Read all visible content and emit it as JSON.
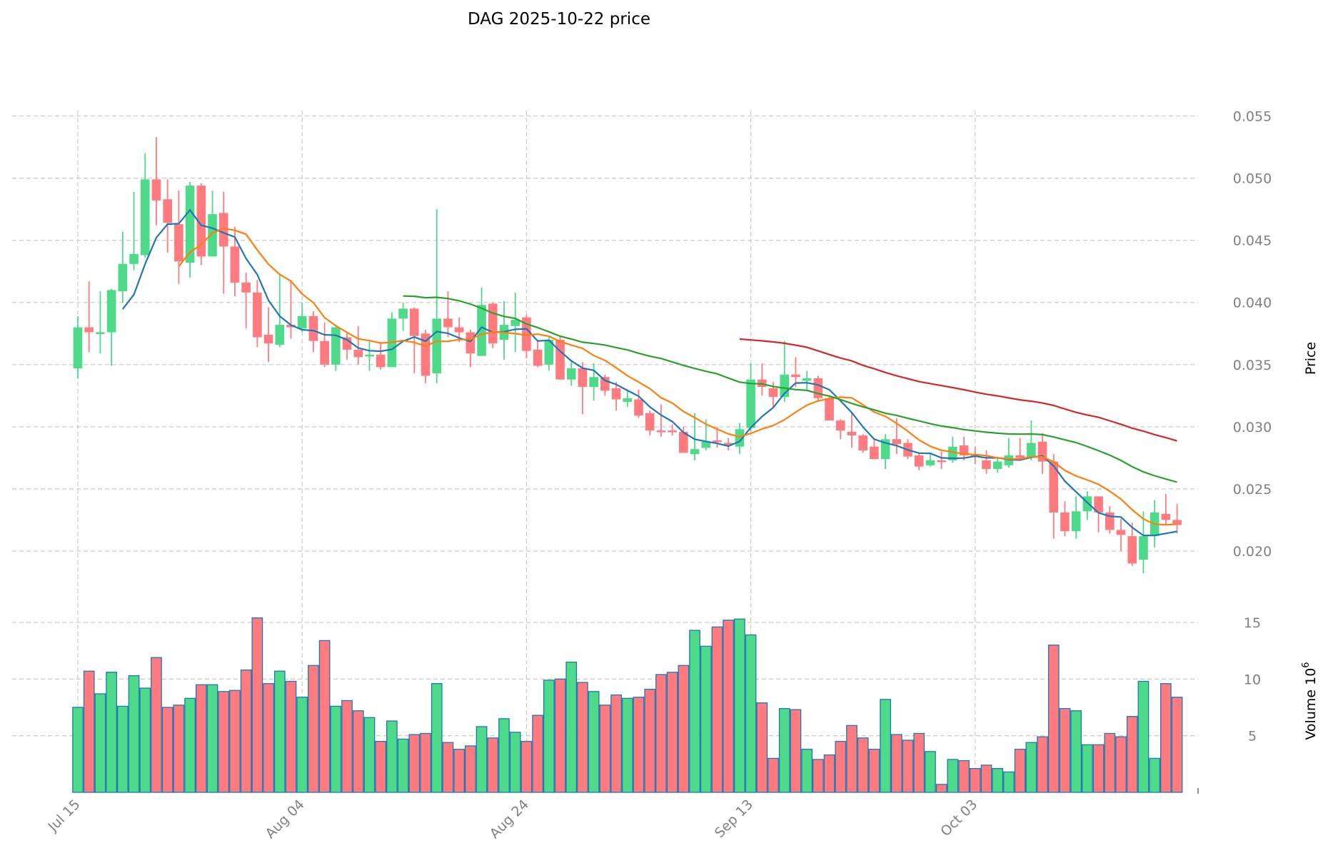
{
  "chart_data": {
    "type": "candlestick",
    "title": "DAG  2025-10-22  price",
    "ylabel_price": "Price",
    "ylabel_volume": "Volume",
    "volume_exponent_label": "10",
    "volume_exponent_power": "6",
    "price_ylim": [
      0.0175,
      0.055
    ],
    "price_ticks": [
      "0.020",
      "0.025",
      "0.030",
      "0.035",
      "0.040",
      "0.045",
      "0.050",
      "0.055"
    ],
    "volume_ylim": [
      0,
      16
    ],
    "volume_ticks": [
      "5",
      "10",
      "15"
    ],
    "x_tick_labels": [
      "Jul 15",
      "Aug 04",
      "Aug 24",
      "Sep 13",
      "Oct 03"
    ],
    "x_tick_indices": [
      0,
      20,
      40,
      60,
      80
    ],
    "start_date": "Jul 15",
    "grid": true,
    "colors": {
      "up": "#4ddb8a",
      "down": "#ff7b80",
      "volume_edge": "#1f77b4",
      "ma_a": "#1f77b4",
      "ma_b": "#ff7f0e",
      "ma_c": "#2ca02c",
      "ma_d": "#d62728"
    },
    "moving_average_periods": [
      5,
      10,
      30,
      60
    ],
    "ohlc": [
      [
        0.0347,
        0.0389,
        0.0339,
        0.038
      ],
      [
        0.038,
        0.0417,
        0.036,
        0.0376
      ],
      [
        0.0375,
        0.0409,
        0.0359,
        0.0376
      ],
      [
        0.0376,
        0.0411,
        0.0349,
        0.041
      ],
      [
        0.0409,
        0.0457,
        0.04,
        0.0431
      ],
      [
        0.0431,
        0.0489,
        0.0426,
        0.0439
      ],
      [
        0.0438,
        0.052,
        0.0436,
        0.0499
      ],
      [
        0.0499,
        0.0533,
        0.0462,
        0.0482
      ],
      [
        0.0483,
        0.0499,
        0.044,
        0.0464
      ],
      [
        0.0463,
        0.049,
        0.0415,
        0.0433
      ],
      [
        0.0432,
        0.0497,
        0.042,
        0.0494
      ],
      [
        0.0494,
        0.0496,
        0.043,
        0.0437
      ],
      [
        0.0437,
        0.049,
        0.0437,
        0.0471
      ],
      [
        0.0472,
        0.0489,
        0.0407,
        0.0445
      ],
      [
        0.0445,
        0.0461,
        0.0405,
        0.0416
      ],
      [
        0.0416,
        0.0424,
        0.0379,
        0.0408
      ],
      [
        0.0408,
        0.0418,
        0.0364,
        0.0372
      ],
      [
        0.0374,
        0.0396,
        0.0352,
        0.0367
      ],
      [
        0.0366,
        0.0423,
        0.0364,
        0.0382
      ],
      [
        0.0382,
        0.0418,
        0.0371,
        0.038
      ],
      [
        0.0379,
        0.04,
        0.0376,
        0.0389
      ],
      [
        0.0389,
        0.0393,
        0.036,
        0.0369
      ],
      [
        0.0369,
        0.0384,
        0.0348,
        0.035
      ],
      [
        0.035,
        0.0382,
        0.0345,
        0.038
      ],
      [
        0.0372,
        0.0376,
        0.0354,
        0.0362
      ],
      [
        0.0362,
        0.0381,
        0.035,
        0.0356
      ],
      [
        0.0357,
        0.037,
        0.0345,
        0.0358
      ],
      [
        0.0358,
        0.0368,
        0.0346,
        0.0348
      ],
      [
        0.0348,
        0.0392,
        0.0348,
        0.0387
      ],
      [
        0.0387,
        0.04,
        0.0377,
        0.0395
      ],
      [
        0.0395,
        0.0396,
        0.0343,
        0.0373
      ],
      [
        0.0375,
        0.0378,
        0.0335,
        0.0341
      ],
      [
        0.0343,
        0.0475,
        0.0335,
        0.0387
      ],
      [
        0.0387,
        0.0409,
        0.0372,
        0.038
      ],
      [
        0.038,
        0.0388,
        0.0368,
        0.0376
      ],
      [
        0.0376,
        0.0378,
        0.0348,
        0.0359
      ],
      [
        0.0357,
        0.0412,
        0.0357,
        0.0398
      ],
      [
        0.0399,
        0.04,
        0.0363,
        0.0367
      ],
      [
        0.037,
        0.0401,
        0.0354,
        0.0382
      ],
      [
        0.0381,
        0.0408,
        0.036,
        0.0386
      ],
      [
        0.0388,
        0.039,
        0.0355,
        0.0361
      ],
      [
        0.0362,
        0.037,
        0.0348,
        0.0349
      ],
      [
        0.035,
        0.0372,
        0.0345,
        0.037
      ],
      [
        0.037,
        0.0373,
        0.0338,
        0.0338
      ],
      [
        0.0338,
        0.0354,
        0.0333,
        0.0347
      ],
      [
        0.0347,
        0.0352,
        0.031,
        0.0332
      ],
      [
        0.0332,
        0.0351,
        0.0321,
        0.034
      ],
      [
        0.034,
        0.0342,
        0.0325,
        0.0329
      ],
      [
        0.0331,
        0.0336,
        0.0313,
        0.0322
      ],
      [
        0.032,
        0.033,
        0.0316,
        0.0323
      ],
      [
        0.0322,
        0.033,
        0.0307,
        0.0309
      ],
      [
        0.0311,
        0.0313,
        0.0293,
        0.0297
      ],
      [
        0.0297,
        0.0318,
        0.0292,
        0.0296
      ],
      [
        0.0297,
        0.0302,
        0.0293,
        0.0296
      ],
      [
        0.0296,
        0.03,
        0.0279,
        0.0279
      ],
      [
        0.0278,
        0.0311,
        0.0273,
        0.0282
      ],
      [
        0.0283,
        0.0306,
        0.0281,
        0.0288
      ],
      [
        0.0289,
        0.03,
        0.0283,
        0.0288
      ],
      [
        0.0287,
        0.0291,
        0.0281,
        0.0285
      ],
      [
        0.0284,
        0.0303,
        0.0278,
        0.0298
      ],
      [
        0.0299,
        0.0351,
        0.0296,
        0.0338
      ],
      [
        0.0338,
        0.0351,
        0.0325,
        0.0332
      ],
      [
        0.0331,
        0.0336,
        0.0315,
        0.0324
      ],
      [
        0.0324,
        0.0369,
        0.032,
        0.0342
      ],
      [
        0.0342,
        0.0356,
        0.0332,
        0.034
      ],
      [
        0.0337,
        0.0345,
        0.033,
        0.0339
      ],
      [
        0.0339,
        0.0341,
        0.032,
        0.0323
      ],
      [
        0.0323,
        0.0324,
        0.0305,
        0.0305
      ],
      [
        0.0305,
        0.0306,
        0.029,
        0.0297
      ],
      [
        0.0296,
        0.0311,
        0.0283,
        0.0293
      ],
      [
        0.0293,
        0.0294,
        0.0279,
        0.0281
      ],
      [
        0.0284,
        0.029,
        0.0274,
        0.0274
      ],
      [
        0.0274,
        0.0294,
        0.0266,
        0.029
      ],
      [
        0.029,
        0.0307,
        0.0278,
        0.0286
      ],
      [
        0.0287,
        0.029,
        0.0274,
        0.0276
      ],
      [
        0.0277,
        0.0279,
        0.0265,
        0.0268
      ],
      [
        0.0269,
        0.0278,
        0.0268,
        0.0273
      ],
      [
        0.0273,
        0.028,
        0.0266,
        0.0272
      ],
      [
        0.0273,
        0.0292,
        0.0271,
        0.0284
      ],
      [
        0.0285,
        0.0292,
        0.0273,
        0.0277
      ],
      [
        0.0277,
        0.0284,
        0.027,
        0.0276
      ],
      [
        0.0273,
        0.0281,
        0.0262,
        0.0266
      ],
      [
        0.0266,
        0.0276,
        0.0263,
        0.0272
      ],
      [
        0.0269,
        0.0291,
        0.0267,
        0.0277
      ],
      [
        0.0277,
        0.0291,
        0.0273,
        0.0275
      ],
      [
        0.0275,
        0.0305,
        0.0273,
        0.0287
      ],
      [
        0.0288,
        0.0295,
        0.0262,
        0.0272
      ],
      [
        0.0272,
        0.0278,
        0.021,
        0.0231
      ],
      [
        0.0231,
        0.024,
        0.0212,
        0.0216
      ],
      [
        0.0216,
        0.0244,
        0.021,
        0.0232
      ],
      [
        0.0232,
        0.0248,
        0.0225,
        0.0244
      ],
      [
        0.0244,
        0.0244,
        0.0215,
        0.0231
      ],
      [
        0.0231,
        0.0236,
        0.0214,
        0.0217
      ],
      [
        0.0217,
        0.0226,
        0.02,
        0.0213
      ],
      [
        0.0212,
        0.0223,
        0.0188,
        0.019
      ],
      [
        0.0193,
        0.0232,
        0.0182,
        0.0212
      ],
      [
        0.0212,
        0.0241,
        0.0203,
        0.0231
      ],
      [
        0.023,
        0.0246,
        0.0221,
        0.0225
      ],
      [
        0.0225,
        0.0238,
        0.0214,
        0.0221
      ]
    ],
    "volume_millions": [
      7.5,
      10.7,
      8.7,
      10.6,
      7.6,
      10.3,
      9.2,
      11.9,
      7.5,
      7.7,
      8.3,
      9.5,
      9.5,
      8.9,
      9.0,
      10.8,
      15.4,
      9.6,
      10.7,
      9.8,
      8.4,
      11.2,
      13.4,
      7.6,
      8.1,
      7.2,
      6.6,
      4.5,
      6.3,
      4.7,
      5.1,
      5.2,
      9.6,
      4.4,
      3.8,
      4.1,
      5.8,
      4.8,
      6.5,
      5.3,
      4.5,
      6.8,
      9.9,
      10.0,
      11.5,
      9.7,
      8.9,
      7.7,
      8.6,
      8.3,
      8.4,
      9.1,
      10.4,
      10.6,
      11.2,
      14.3,
      12.9,
      14.6,
      15.2,
      15.3,
      13.9,
      7.9,
      3.0,
      7.4,
      7.3,
      3.8,
      2.9,
      3.3,
      4.5,
      5.9,
      4.8,
      3.8,
      8.2,
      5.1,
      4.6,
      5.2,
      3.6,
      0.7,
      2.9,
      2.8,
      2.1,
      2.4,
      2.1,
      1.8,
      3.8,
      4.4,
      4.9,
      13.0,
      7.4,
      7.2,
      4.2,
      4.2,
      5.2,
      4.9,
      6.7,
      9.8,
      3.0,
      9.6,
      8.4
    ]
  }
}
